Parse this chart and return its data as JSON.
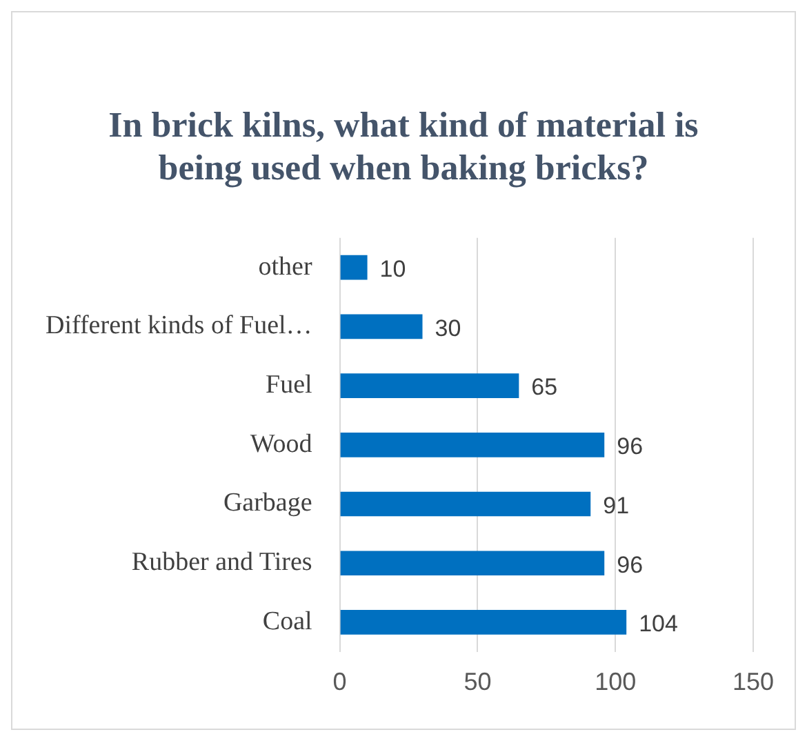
{
  "chart_data": {
    "type": "bar",
    "orientation": "horizontal",
    "title": "In brick kilns, what kind of material is being used when baking bricks?",
    "categories": [
      "other",
      "Different kinds of Fuel…",
      "Fuel",
      "Wood",
      "Garbage",
      "Rubber and Tires",
      "Coal"
    ],
    "values": [
      10,
      30,
      65,
      96,
      91,
      96,
      104
    ],
    "color": "#0070c0",
    "xlim": [
      0,
      150
    ],
    "xticks": [
      0,
      50,
      100,
      150
    ],
    "grid": "x",
    "legend": false,
    "data_labels": true
  }
}
